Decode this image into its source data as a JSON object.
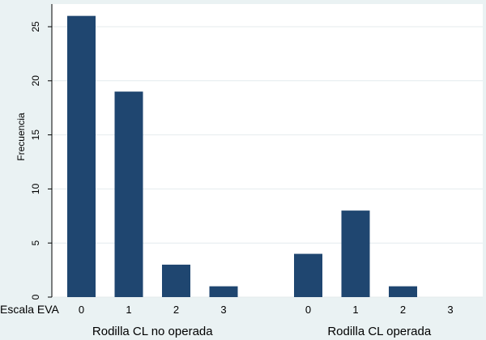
{
  "chart_data": {
    "type": "bar",
    "ylabel": "Frecuencia",
    "xlabel_prefix": "Escala EVA",
    "ylim": [
      0,
      26
    ],
    "yticks": [
      0,
      5,
      10,
      15,
      20,
      25
    ],
    "grid": true,
    "bar_color": "#1f4670",
    "groups": [
      {
        "name": "Rodilla CL no operada",
        "categories": [
          "0",
          "1",
          "2",
          "3"
        ],
        "values": [
          26,
          19,
          3,
          1
        ]
      },
      {
        "name": "Rodilla CL operada",
        "categories": [
          "0",
          "1",
          "2",
          "3"
        ],
        "values": [
          4,
          8,
          1,
          0
        ]
      }
    ]
  }
}
